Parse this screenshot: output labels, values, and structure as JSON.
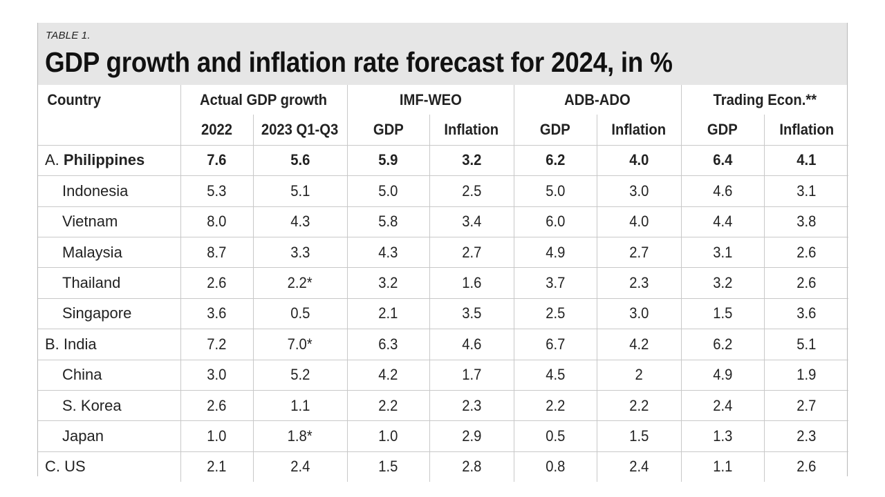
{
  "table_label": "TABLE 1.",
  "title": "GDP growth and inflation rate forecast for 2024, in %",
  "headers": {
    "country": "Country",
    "groups": [
      "Actual GDP growth",
      "IMF-WEO",
      "ADB-ADO",
      "Trading Econ.**"
    ],
    "subheaders": [
      "2022",
      "2023 Q1-Q3",
      "GDP",
      "Inflation",
      "GDP",
      "Inflation",
      "GDP",
      "Inflation"
    ]
  },
  "rows": [
    {
      "prefix": "A. ",
      "name": "Philippines",
      "values": [
        "7.6",
        "5.6",
        "5.9",
        "3.2",
        "6.2",
        "4.0",
        "6.4",
        "4.1"
      ]
    },
    {
      "prefix": "",
      "name": "Indonesia",
      "values": [
        "5.3",
        "5.1",
        "5.0",
        "2.5",
        "5.0",
        "3.0",
        "4.6",
        "3.1"
      ]
    },
    {
      "prefix": "",
      "name": "Vietnam",
      "values": [
        "8.0",
        "4.3",
        "5.8",
        "3.4",
        "6.0",
        "4.0",
        "4.4",
        "3.8"
      ]
    },
    {
      "prefix": "",
      "name": "Malaysia",
      "values": [
        "8.7",
        "3.3",
        "4.3",
        "2.7",
        "4.9",
        "2.7",
        "3.1",
        "2.6"
      ]
    },
    {
      "prefix": "",
      "name": "Thailand",
      "values": [
        "2.6",
        "2.2*",
        "3.2",
        "1.6",
        "3.7",
        "2.3",
        "3.2",
        "2.6"
      ]
    },
    {
      "prefix": "",
      "name": "Singapore",
      "values": [
        "3.6",
        "0.5",
        "2.1",
        "3.5",
        "2.5",
        "3.0",
        "1.5",
        "3.6"
      ]
    },
    {
      "prefix": "B. ",
      "name": "India",
      "values": [
        "7.2",
        "7.0*",
        "6.3",
        "4.6",
        "6.7",
        "4.2",
        "6.2",
        "5.1"
      ]
    },
    {
      "prefix": "",
      "name": "China",
      "values": [
        "3.0",
        "5.2",
        "4.2",
        "1.7",
        "4.5",
        "2",
        "4.9",
        "1.9"
      ]
    },
    {
      "prefix": "",
      "name": "S. Korea",
      "values": [
        "2.6",
        "1.1",
        "2.2",
        "2.3",
        "2.2",
        "2.2",
        "2.4",
        "2.7"
      ]
    },
    {
      "prefix": "",
      "name": "Japan",
      "values": [
        "1.0",
        "1.8*",
        "1.0",
        "2.9",
        "0.5",
        "1.5",
        "1.3",
        "2.3"
      ]
    },
    {
      "prefix": "C. ",
      "name": "US",
      "values": [
        "2.1",
        "2.4",
        "1.5",
        "2.8",
        "0.8",
        "2.4",
        "1.1",
        "2.6"
      ]
    }
  ]
}
